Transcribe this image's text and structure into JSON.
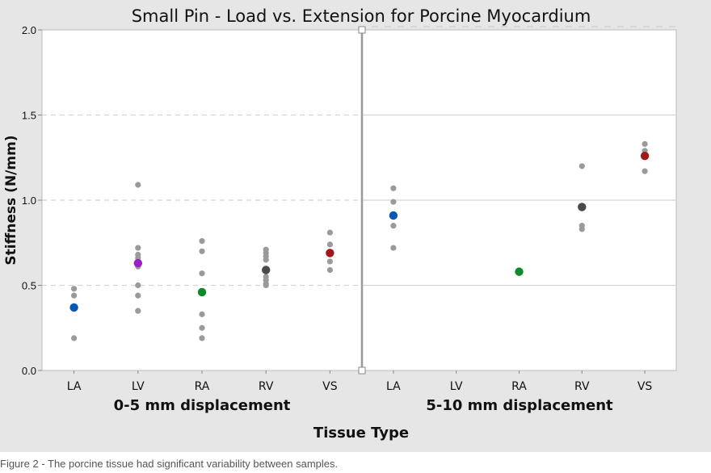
{
  "chart_data": {
    "type": "scatter",
    "title": "Small Pin -  Load vs. Extension for Porcine Myocardium",
    "xlabel": "Tissue Type",
    "ylabel": "Stiffness (N/mm)",
    "ylim": [
      0,
      2.0
    ],
    "yticks": [
      "0.0",
      "0.5",
      "1.0",
      "1.5",
      "2.0"
    ],
    "grid": true,
    "categories": [
      "LA",
      "LV",
      "RA",
      "RV",
      "VS"
    ],
    "mean_colors": {
      "LA": "#0a56b0",
      "LV": "#9a1fc4",
      "RA": "#0f8a2a",
      "RV": "#4a4a4a",
      "VS": "#a01818"
    },
    "sample_color": "#9a9a9a",
    "panels": [
      {
        "label": "0-5 mm displacement",
        "groups": [
          {
            "category": "LA",
            "samples": [
              0.48,
              0.44,
              0.19
            ],
            "mean": 0.37
          },
          {
            "category": "LV",
            "samples": [
              1.09,
              0.72,
              0.68,
              0.66,
              0.61,
              0.5,
              0.44,
              0.35
            ],
            "mean": 0.63
          },
          {
            "category": "RA",
            "samples": [
              0.76,
              0.7,
              0.57,
              0.33,
              0.25,
              0.19
            ],
            "mean": 0.46
          },
          {
            "category": "RV",
            "samples": [
              0.71,
              0.69,
              0.67,
              0.65,
              0.55,
              0.53,
              0.51,
              0.5
            ],
            "mean": 0.59
          },
          {
            "category": "VS",
            "samples": [
              0.81,
              0.74,
              0.64,
              0.59
            ],
            "mean": 0.69
          }
        ]
      },
      {
        "label": "5-10 mm displacement",
        "groups": [
          {
            "category": "LA",
            "samples": [
              1.07,
              0.99,
              0.85,
              0.72
            ],
            "mean": 0.91
          },
          {
            "category": "LV",
            "samples": [],
            "mean": null
          },
          {
            "category": "RA",
            "samples": [],
            "mean": 0.58
          },
          {
            "category": "RV",
            "samples": [
              1.2,
              0.85,
              0.83
            ],
            "mean": 0.96
          },
          {
            "category": "VS",
            "samples": [
              1.33,
              1.29,
              1.17
            ],
            "mean": 1.26
          }
        ]
      }
    ]
  },
  "caption": "Figure 2 - The porcine tissue had significant variability between samples."
}
